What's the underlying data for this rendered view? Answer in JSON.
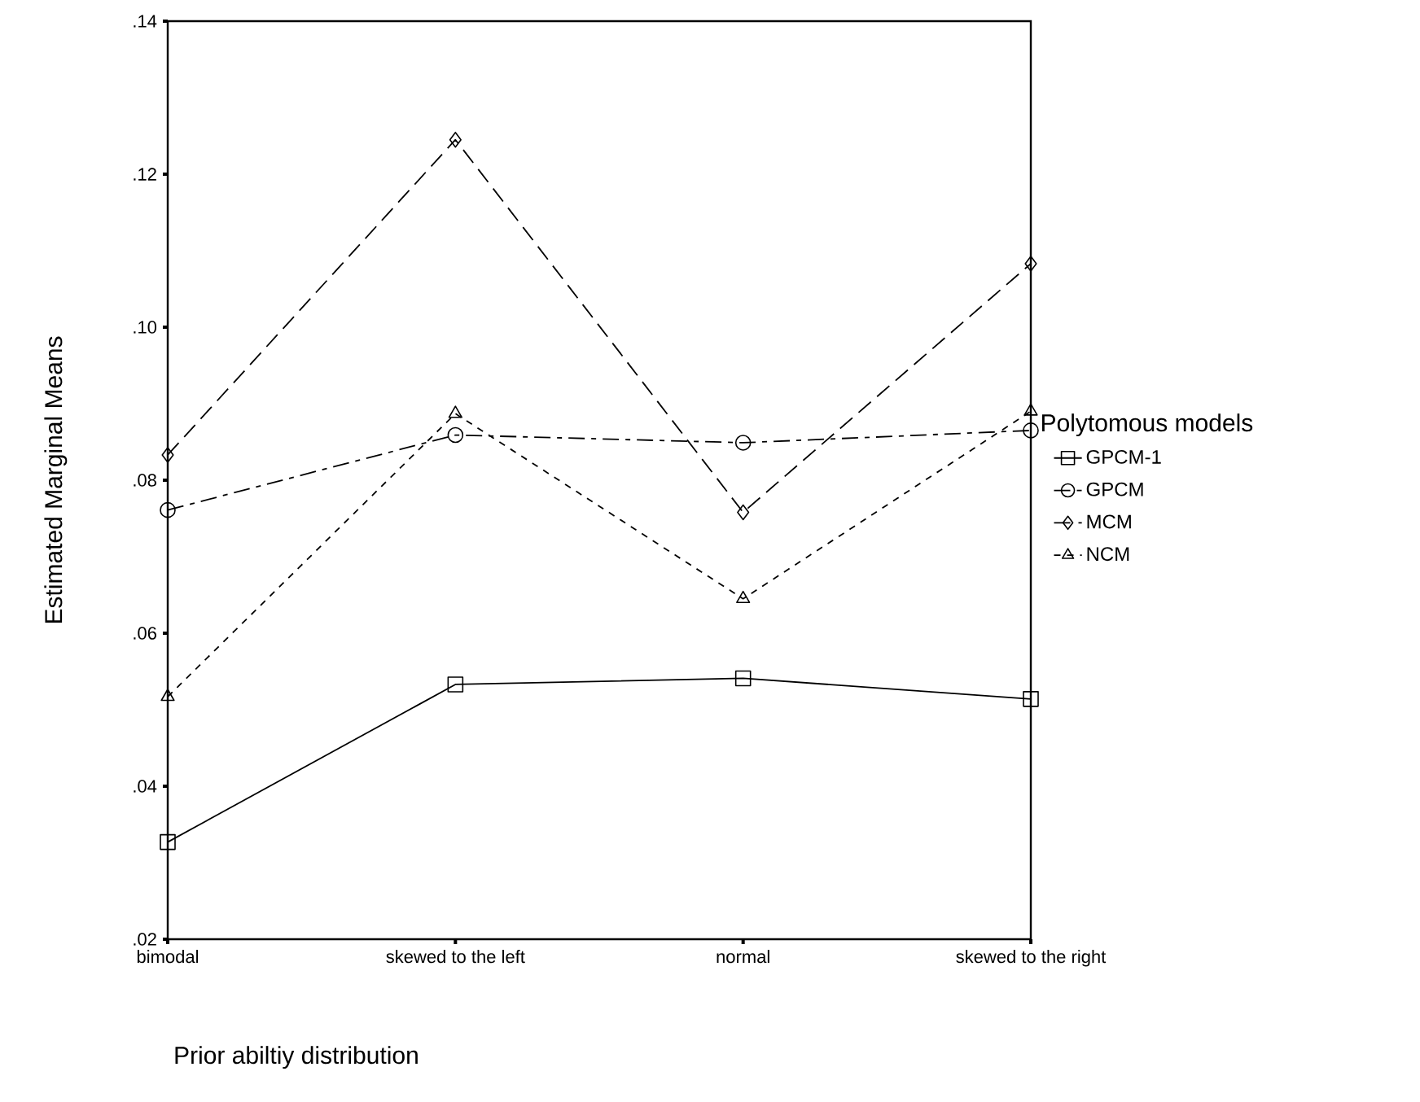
{
  "chart_data": {
    "type": "line",
    "xlabel": "Prior abiltiy distribution",
    "ylabel": "Estimated Marginal Means",
    "legend_title": "Polytomous models",
    "legend": "right",
    "categories": [
      "bimodal",
      "skewed to the left",
      "normal",
      "skewed to the right"
    ],
    "ylim": [
      0.02,
      0.14
    ],
    "yticks": [
      {
        "value": 0.02,
        "label": ".02"
      },
      {
        "value": 0.04,
        "label": ".04"
      },
      {
        "value": 0.06,
        "label": ".06"
      },
      {
        "value": 0.08,
        "label": ".08"
      },
      {
        "value": 0.1,
        "label": ".10"
      },
      {
        "value": 0.12,
        "label": ".12"
      },
      {
        "value": 0.14,
        "label": ".14"
      }
    ],
    "series": [
      {
        "name": "GPCM-1",
        "color": "#000000",
        "marker": "square",
        "line_style": "solid",
        "values": [
          0.0327,
          0.0533,
          0.0541,
          0.0514
        ]
      },
      {
        "name": "GPCM",
        "color": "#000000",
        "marker": "circle",
        "line_style": "dashdot",
        "values": [
          0.0761,
          0.0859,
          0.0849,
          0.0865
        ]
      },
      {
        "name": "MCM",
        "color": "#000000",
        "marker": "diamond",
        "line_style": "dashed",
        "values": [
          0.0833,
          0.1245,
          0.0758,
          0.1083
        ]
      },
      {
        "name": "NCM",
        "color": "#000000",
        "marker": "triangle",
        "line_style": "dotted",
        "values": [
          0.0517,
          0.0887,
          0.0645,
          0.089
        ]
      }
    ]
  }
}
